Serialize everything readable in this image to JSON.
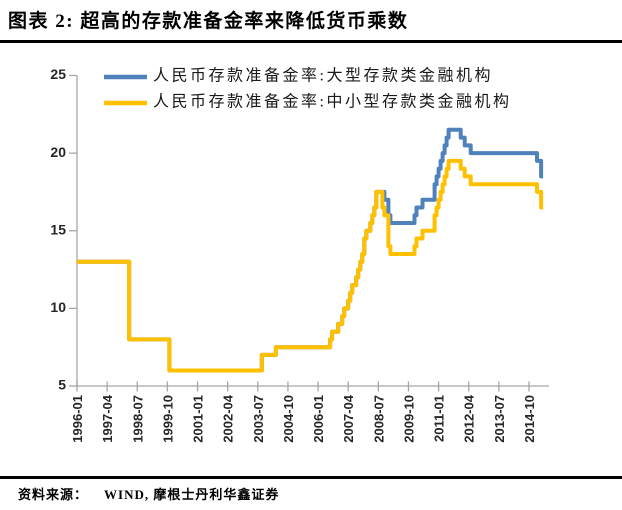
{
  "page": {
    "title": "图表 2:  超高的存款准备金率来降低货币乘数",
    "source_label": "资料来源：",
    "source_text": "WIND, 摩根士丹利华鑫证券"
  },
  "chart_data": {
    "type": "line",
    "step": true,
    "grid": false,
    "legend_position": "top-left-inside",
    "ylim": [
      5,
      25
    ],
    "y_ticks": [
      5,
      10,
      15,
      20,
      25
    ],
    "x_tick_labels": [
      "1996-01",
      "1997-04",
      "1998-07",
      "1999-10",
      "2001-01",
      "2002-04",
      "2003-07",
      "2004-10",
      "2006-01",
      "2007-04",
      "2008-07",
      "2009-10",
      "2011-01",
      "2012-04",
      "2013-07",
      "2014-10"
    ],
    "x_tick_interval_months": 15,
    "x_start": "1996-01",
    "x_line_end": "2015-05",
    "axis_color": "#a6a6a6",
    "tick_label_color": "#262626",
    "series": [
      {
        "name": "人民币存款准备金率:大型存款类金融机构",
        "color": "#4F81BD",
        "points": [
          [
            "1996-01",
            13.0
          ],
          [
            "1998-03",
            8.0
          ],
          [
            "1999-11",
            6.0
          ],
          [
            "2003-09",
            7.0
          ],
          [
            "2004-04",
            7.5
          ],
          [
            "2006-07",
            8.0
          ],
          [
            "2006-08",
            8.5
          ],
          [
            "2006-11",
            9.0
          ],
          [
            "2007-01",
            9.5
          ],
          [
            "2007-02",
            10.0
          ],
          [
            "2007-04",
            10.5
          ],
          [
            "2007-05",
            11.0
          ],
          [
            "2007-06",
            11.5
          ],
          [
            "2007-08",
            12.0
          ],
          [
            "2007-09",
            12.5
          ],
          [
            "2007-10",
            13.0
          ],
          [
            "2007-11",
            13.5
          ],
          [
            "2007-12",
            14.5
          ],
          [
            "2008-01",
            15.0
          ],
          [
            "2008-03",
            15.5
          ],
          [
            "2008-04",
            16.0
          ],
          [
            "2008-05",
            16.5
          ],
          [
            "2008-06",
            17.5
          ],
          [
            "2008-10",
            17.0
          ],
          [
            "2008-12",
            16.0
          ],
          [
            "2009-01",
            15.5
          ],
          [
            "2010-01",
            16.0
          ],
          [
            "2010-02",
            16.5
          ],
          [
            "2010-05",
            17.0
          ],
          [
            "2010-11",
            18.0
          ],
          [
            "2010-12",
            18.5
          ],
          [
            "2011-01",
            19.0
          ],
          [
            "2011-02",
            19.5
          ],
          [
            "2011-03",
            20.0
          ],
          [
            "2011-04",
            20.5
          ],
          [
            "2011-05",
            21.0
          ],
          [
            "2011-06",
            21.5
          ],
          [
            "2011-12",
            21.0
          ],
          [
            "2012-02",
            20.5
          ],
          [
            "2012-05",
            20.0
          ],
          [
            "2015-02",
            19.5
          ],
          [
            "2015-04",
            18.5
          ]
        ]
      },
      {
        "name": "人民币存款准备金率:中小型存款类金融机构",
        "color": "#FFC000",
        "points": [
          [
            "1996-01",
            13.0
          ],
          [
            "1998-03",
            8.0
          ],
          [
            "1999-11",
            6.0
          ],
          [
            "2003-09",
            7.0
          ],
          [
            "2004-04",
            7.5
          ],
          [
            "2006-07",
            8.0
          ],
          [
            "2006-08",
            8.5
          ],
          [
            "2006-11",
            9.0
          ],
          [
            "2007-01",
            9.5
          ],
          [
            "2007-02",
            10.0
          ],
          [
            "2007-04",
            10.5
          ],
          [
            "2007-05",
            11.0
          ],
          [
            "2007-06",
            11.5
          ],
          [
            "2007-08",
            12.0
          ],
          [
            "2007-09",
            12.5
          ],
          [
            "2007-10",
            13.0
          ],
          [
            "2007-11",
            13.5
          ],
          [
            "2007-12",
            14.5
          ],
          [
            "2008-01",
            15.0
          ],
          [
            "2008-03",
            15.5
          ],
          [
            "2008-04",
            16.0
          ],
          [
            "2008-05",
            16.5
          ],
          [
            "2008-06",
            17.5
          ],
          [
            "2008-09",
            16.5
          ],
          [
            "2008-10",
            16.0
          ],
          [
            "2008-12",
            14.0
          ],
          [
            "2009-01",
            13.5
          ],
          [
            "2010-01",
            14.0
          ],
          [
            "2010-02",
            14.5
          ],
          [
            "2010-05",
            15.0
          ],
          [
            "2010-11",
            16.0
          ],
          [
            "2010-12",
            16.5
          ],
          [
            "2011-01",
            17.0
          ],
          [
            "2011-02",
            17.5
          ],
          [
            "2011-03",
            18.0
          ],
          [
            "2011-04",
            18.5
          ],
          [
            "2011-05",
            19.0
          ],
          [
            "2011-06",
            19.5
          ],
          [
            "2011-12",
            19.0
          ],
          [
            "2012-02",
            18.5
          ],
          [
            "2012-05",
            18.0
          ],
          [
            "2015-02",
            17.5
          ],
          [
            "2015-04",
            16.5
          ]
        ]
      }
    ]
  }
}
